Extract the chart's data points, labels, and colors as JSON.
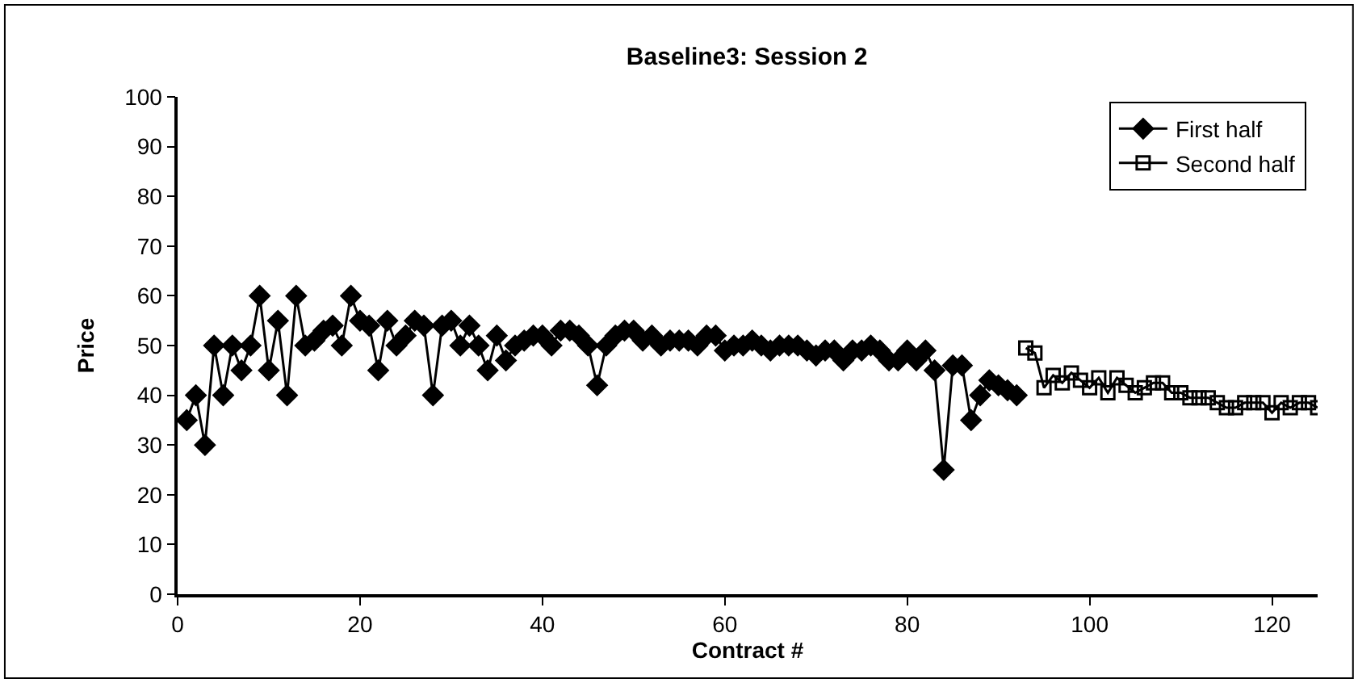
{
  "chart_data": {
    "type": "line",
    "title": "Baseline3: Session 2",
    "xlabel": "Contract #",
    "ylabel": "Price",
    "xlim": [
      0,
      125
    ],
    "xticks": [
      0,
      20,
      40,
      60,
      80,
      100,
      120
    ],
    "ylim": [
      0,
      100
    ],
    "yticks": [
      0,
      10,
      20,
      30,
      40,
      50,
      60,
      70,
      80,
      90,
      100
    ],
    "legend": "top right",
    "series": [
      {
        "name": "First half",
        "color": "#000000",
        "marker": "diamond",
        "x": [
          1,
          2,
          3,
          4,
          5,
          6,
          7,
          8,
          9,
          10,
          11,
          12,
          13,
          14,
          15,
          16,
          17,
          18,
          19,
          20,
          21,
          22,
          23,
          24,
          25,
          26,
          27,
          28,
          29,
          30,
          31,
          32,
          33,
          34,
          35,
          36,
          37,
          38,
          39,
          40,
          41,
          42,
          43,
          44,
          45,
          46,
          47,
          48,
          49,
          50,
          51,
          52,
          53,
          54,
          55,
          56,
          57,
          58,
          59,
          60,
          61,
          62,
          63,
          64,
          65,
          66,
          67,
          68,
          69,
          70,
          71,
          72,
          73,
          74,
          75,
          76,
          77,
          78,
          79,
          80,
          81,
          82,
          83,
          84,
          85,
          86,
          87,
          88,
          89,
          90,
          91,
          92
        ],
        "values": [
          35,
          40,
          30,
          50,
          40,
          50,
          45,
          50,
          60,
          45,
          55,
          40,
          60,
          50,
          51,
          53,
          54,
          50,
          60,
          55,
          54,
          45,
          55,
          50,
          52,
          55,
          54,
          40,
          54,
          55,
          50,
          54,
          50,
          45,
          52,
          47,
          50,
          51,
          52,
          52,
          50,
          53,
          53,
          52,
          50,
          42,
          50,
          52,
          53,
          53,
          51,
          52,
          50,
          51,
          51,
          51,
          50,
          52,
          52,
          49,
          50,
          50,
          51,
          50,
          49,
          50,
          50,
          50,
          49,
          48,
          49,
          49,
          47,
          49,
          49,
          50,
          49,
          47,
          47,
          49,
          47,
          49,
          45,
          25,
          46,
          46,
          35,
          40,
          43,
          42,
          41,
          40
        ]
      },
      {
        "name": "Second half",
        "color": "#000000",
        "marker": "square",
        "x": [
          93,
          94,
          95,
          96,
          97,
          98,
          99,
          100,
          101,
          102,
          103,
          104,
          105,
          106,
          107,
          108,
          109,
          110,
          111,
          112,
          113,
          114,
          115,
          116,
          117,
          118,
          119,
          120,
          121,
          122,
          123,
          124,
          125
        ],
        "values": [
          49.5,
          48.5,
          41.5,
          44,
          42.5,
          44.5,
          43,
          41.5,
          43.5,
          40.5,
          43.5,
          42,
          40.5,
          41.5,
          42.5,
          42.5,
          40.5,
          40.5,
          39.5,
          39.5,
          39.5,
          38.5,
          37.5,
          37.5,
          38.5,
          38.5,
          38.5,
          36.5,
          38.5,
          37.5,
          38.5,
          38.5,
          37.5
        ]
      }
    ]
  }
}
